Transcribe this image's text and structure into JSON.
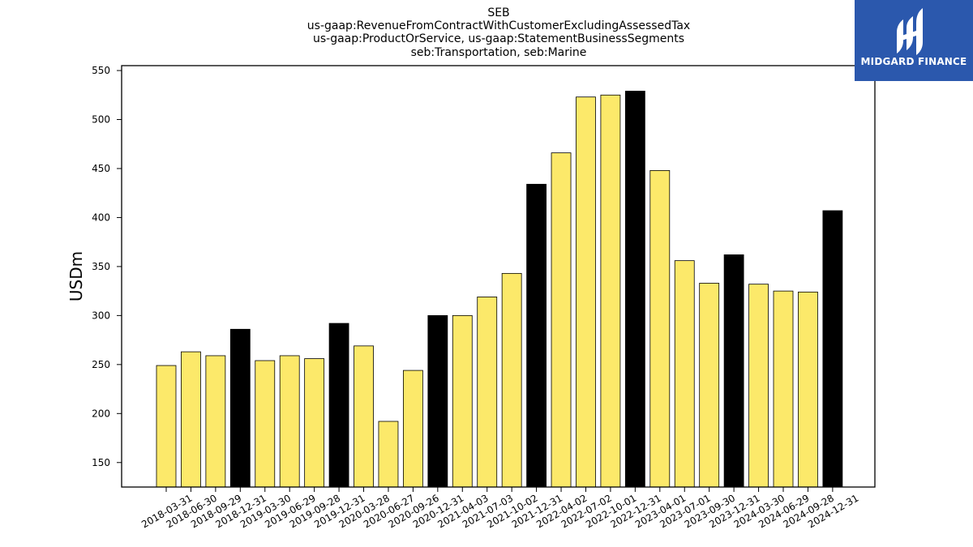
{
  "title_lines": [
    "SEB",
    "us-gaap:RevenueFromContractWithCustomerExcludingAssessedTax",
    "us-gaap:ProductOrService, us-gaap:StatementBusinessSegments",
    "seb:Transportation, seb:Marine"
  ],
  "logo": {
    "text": "MIDGARD FINANCE",
    "background": "#2b58ad",
    "icon": "midgard-logo-icon"
  },
  "colors": {
    "quarter_bar": "#fce96a",
    "year_end_bar": "#000000",
    "edge": "#000000"
  },
  "chart_data": {
    "type": "bar",
    "title": "",
    "ylabel": "USDm",
    "xlabel": "",
    "ylim": [
      125,
      555
    ],
    "yticks": [
      150,
      200,
      250,
      300,
      350,
      400,
      450,
      500,
      550
    ],
    "grid": false,
    "categories": [
      "2018-03-31",
      "2018-06-30",
      "2018-09-29",
      "2018-12-31",
      "2019-03-30",
      "2019-06-29",
      "2019-09-28",
      "2019-12-31",
      "2020-03-28",
      "2020-06-27",
      "2020-09-26",
      "2020-12-31",
      "2021-04-03",
      "2021-07-03",
      "2021-10-02",
      "2021-12-31",
      "2022-04-02",
      "2022-07-02",
      "2022-10-01",
      "2022-12-31",
      "2023-04-01",
      "2023-07-01",
      "2023-09-30",
      "2023-12-31",
      "2024-03-30",
      "2024-06-29",
      "2024-09-28",
      "2024-12-31"
    ],
    "values": [
      249,
      263,
      259,
      286,
      254,
      259,
      256,
      292,
      269,
      192,
      244,
      300,
      300,
      319,
      343,
      434,
      466,
      523,
      525,
      529,
      448,
      356,
      333,
      362,
      332,
      325,
      324,
      407
    ],
    "year_end": [
      false,
      false,
      false,
      true,
      false,
      false,
      false,
      true,
      false,
      false,
      false,
      true,
      false,
      false,
      false,
      true,
      false,
      false,
      false,
      true,
      false,
      false,
      false,
      true,
      false,
      false,
      false,
      true
    ]
  }
}
